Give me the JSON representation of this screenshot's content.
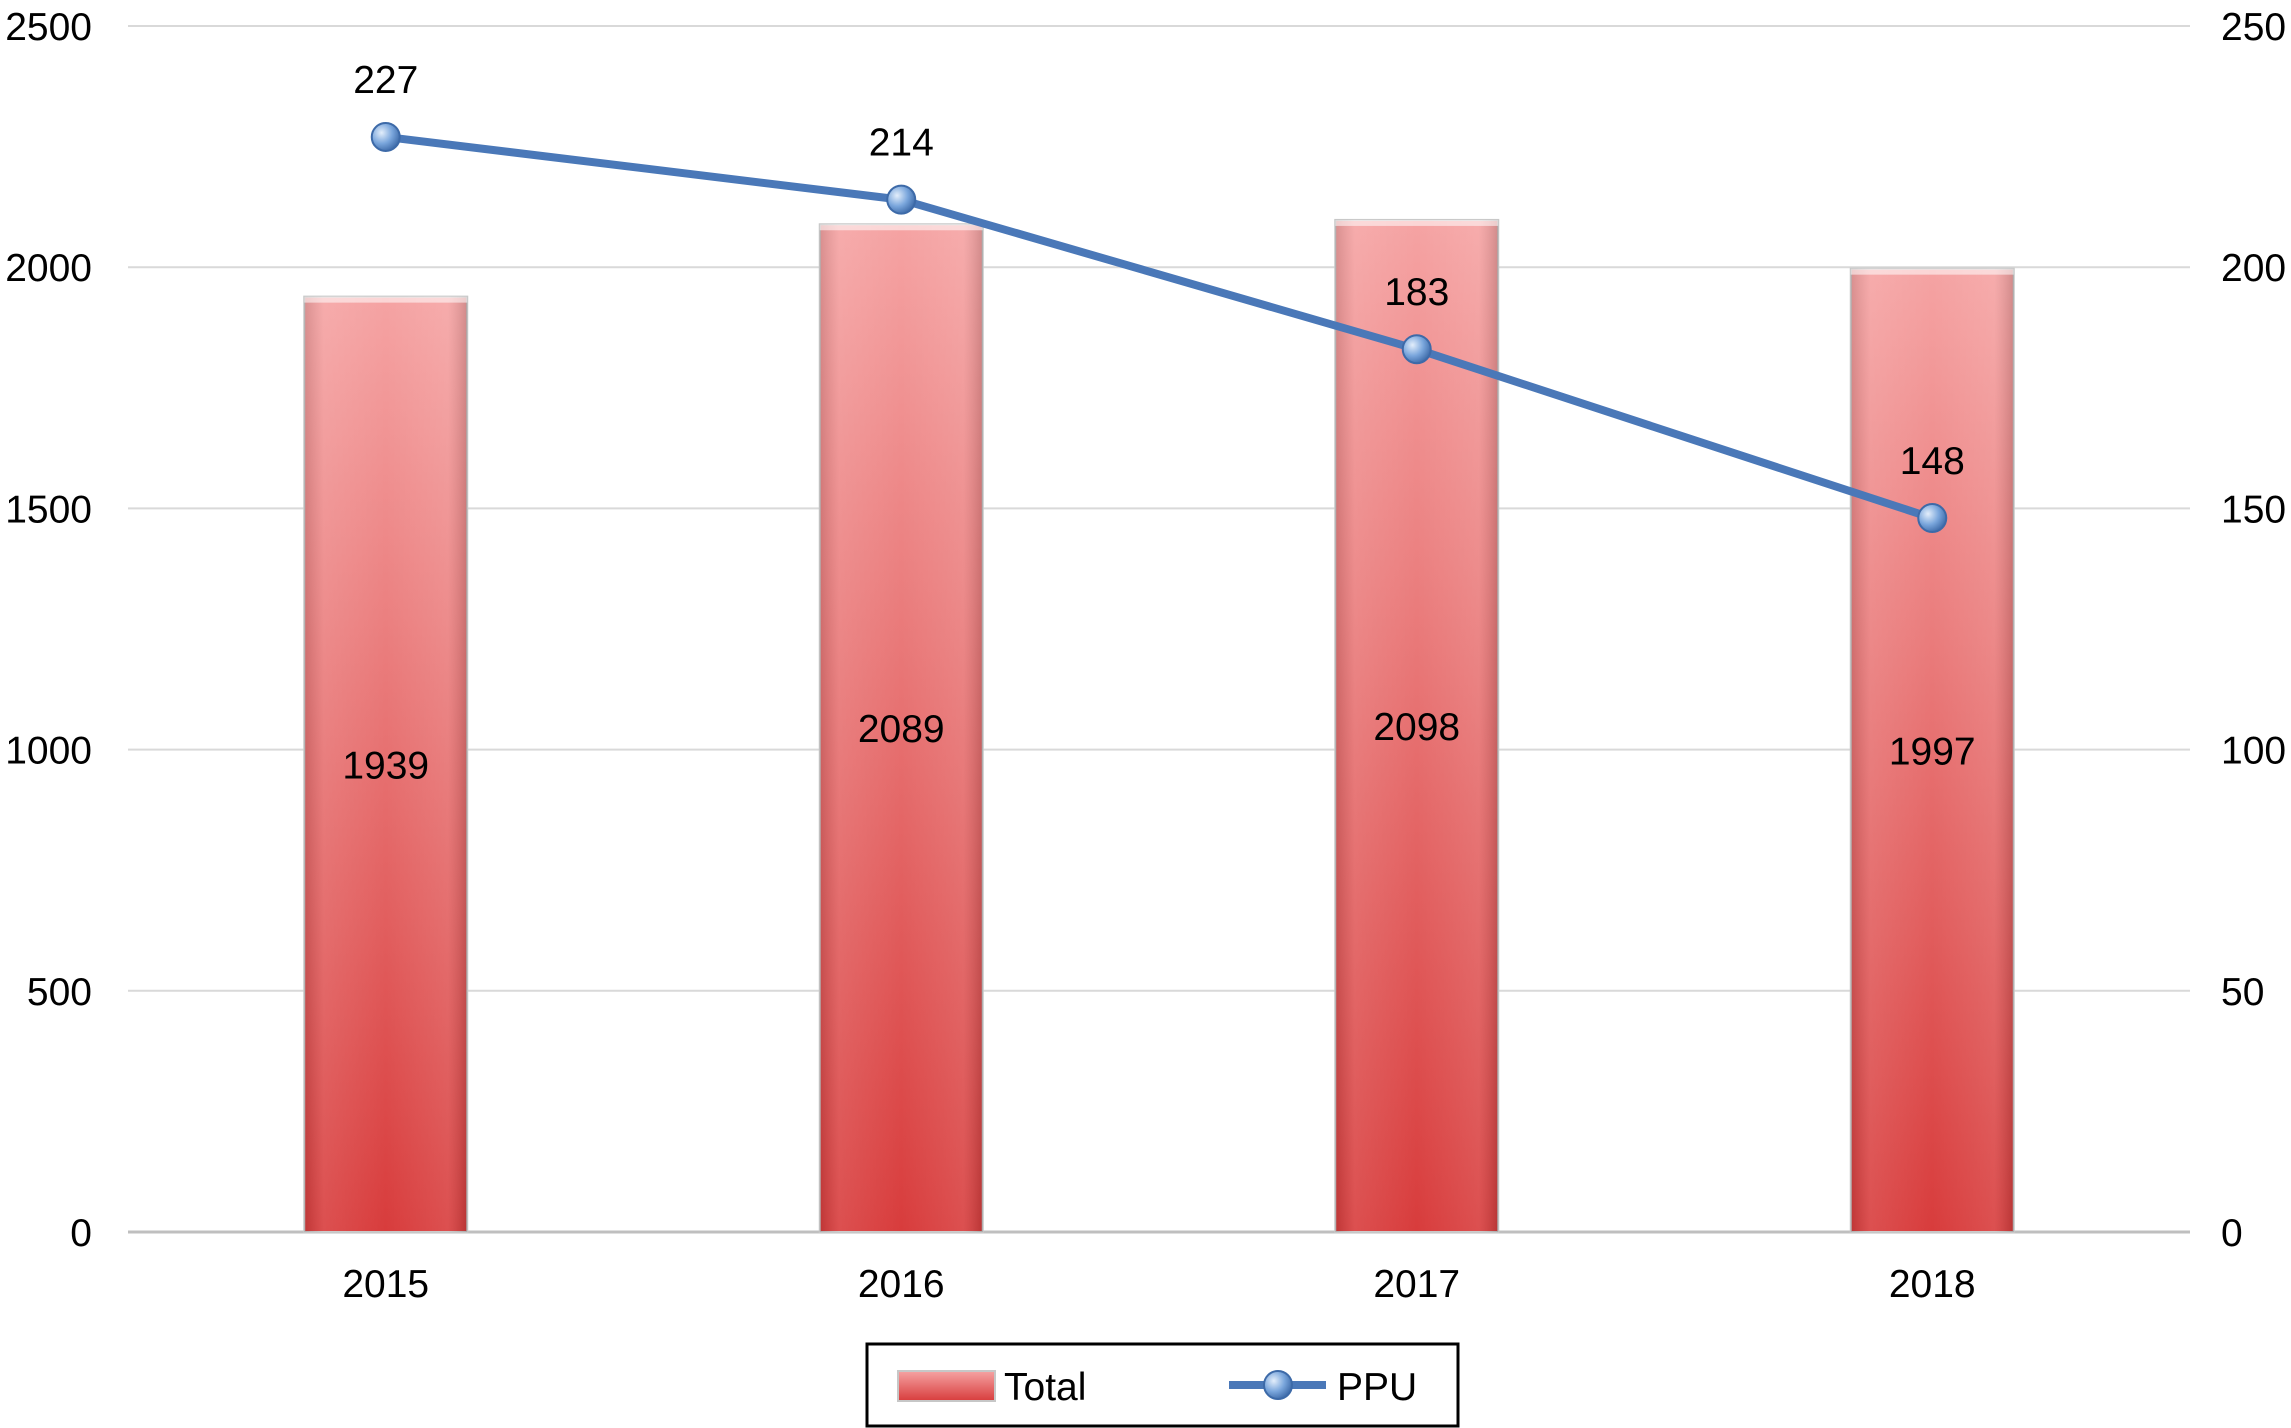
{
  "chart_data": {
    "type": "bar",
    "categories": [
      "2015",
      "2016",
      "2017",
      "2018"
    ],
    "series": [
      {
        "name": "Total",
        "type": "bar",
        "axis": "left",
        "values": [
          1939,
          2089,
          2098,
          1997
        ]
      },
      {
        "name": "PPU",
        "type": "line",
        "axis": "right",
        "values": [
          227,
          214,
          183,
          148
        ]
      }
    ],
    "ylim": [
      0,
      2500
    ],
    "yticks": [
      "0",
      "500",
      "1000",
      "1500",
      "2000",
      "2500"
    ],
    "y2lim": [
      0,
      250
    ],
    "y2ticks": [
      "0",
      "50",
      "100",
      "150",
      "200",
      "250"
    ],
    "grid": true,
    "legend_position": "bottom-center",
    "colors": {
      "bar_top": "#f5a3a3",
      "bar_bottom": "#d83c3c",
      "bar_edge": "#c7c7c7",
      "line": "#4a78b8",
      "marker": "#7aa6dc",
      "grid": "#d9d9d9"
    }
  }
}
